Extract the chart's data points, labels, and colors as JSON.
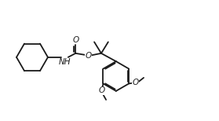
{
  "bg_color": "#ffffff",
  "line_color": "#1a1a1a",
  "lw": 1.3,
  "fs": 7.5,
  "figsize": [
    2.79,
    1.54
  ],
  "dpi": 100,
  "xlim": [
    0,
    10
  ],
  "ylim": [
    0,
    5.5
  ]
}
